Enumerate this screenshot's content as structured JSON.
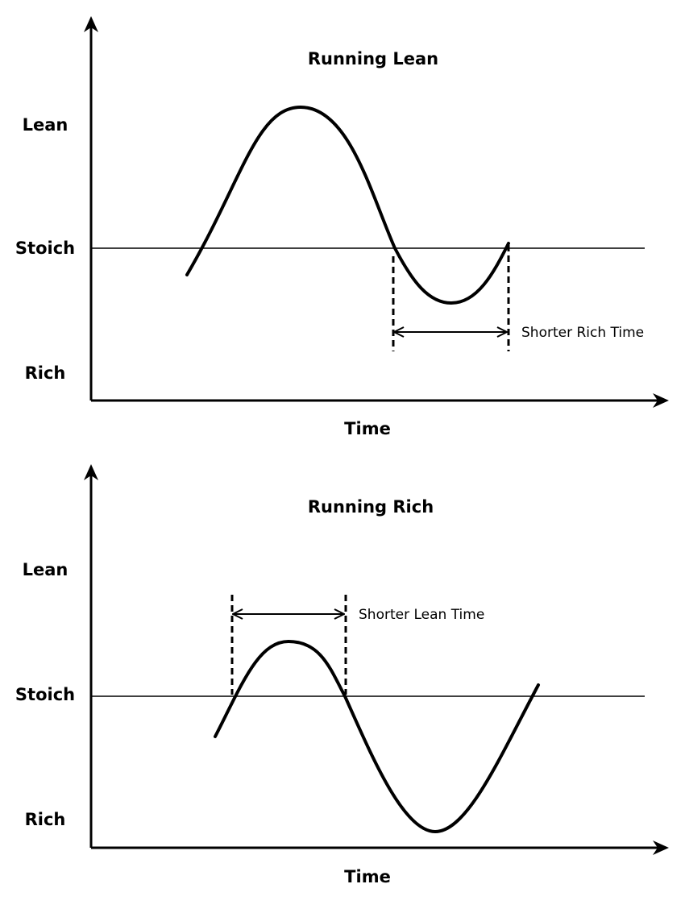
{
  "colors": {
    "ink": "#000000",
    "background": "#ffffff"
  },
  "panels": [
    {
      "title": "Running Lean",
      "x_axis_label": "Time",
      "y_levels": {
        "lean": "Lean",
        "stoich": "Stoich",
        "rich": "Rich"
      },
      "annotation": "Shorter Rich Time"
    },
    {
      "title": "Running Rich",
      "x_axis_label": "Time",
      "y_levels": {
        "lean": "Lean",
        "stoich": "Stoich",
        "rich": "Rich"
      },
      "annotation": "Shorter Lean Time"
    }
  ]
}
